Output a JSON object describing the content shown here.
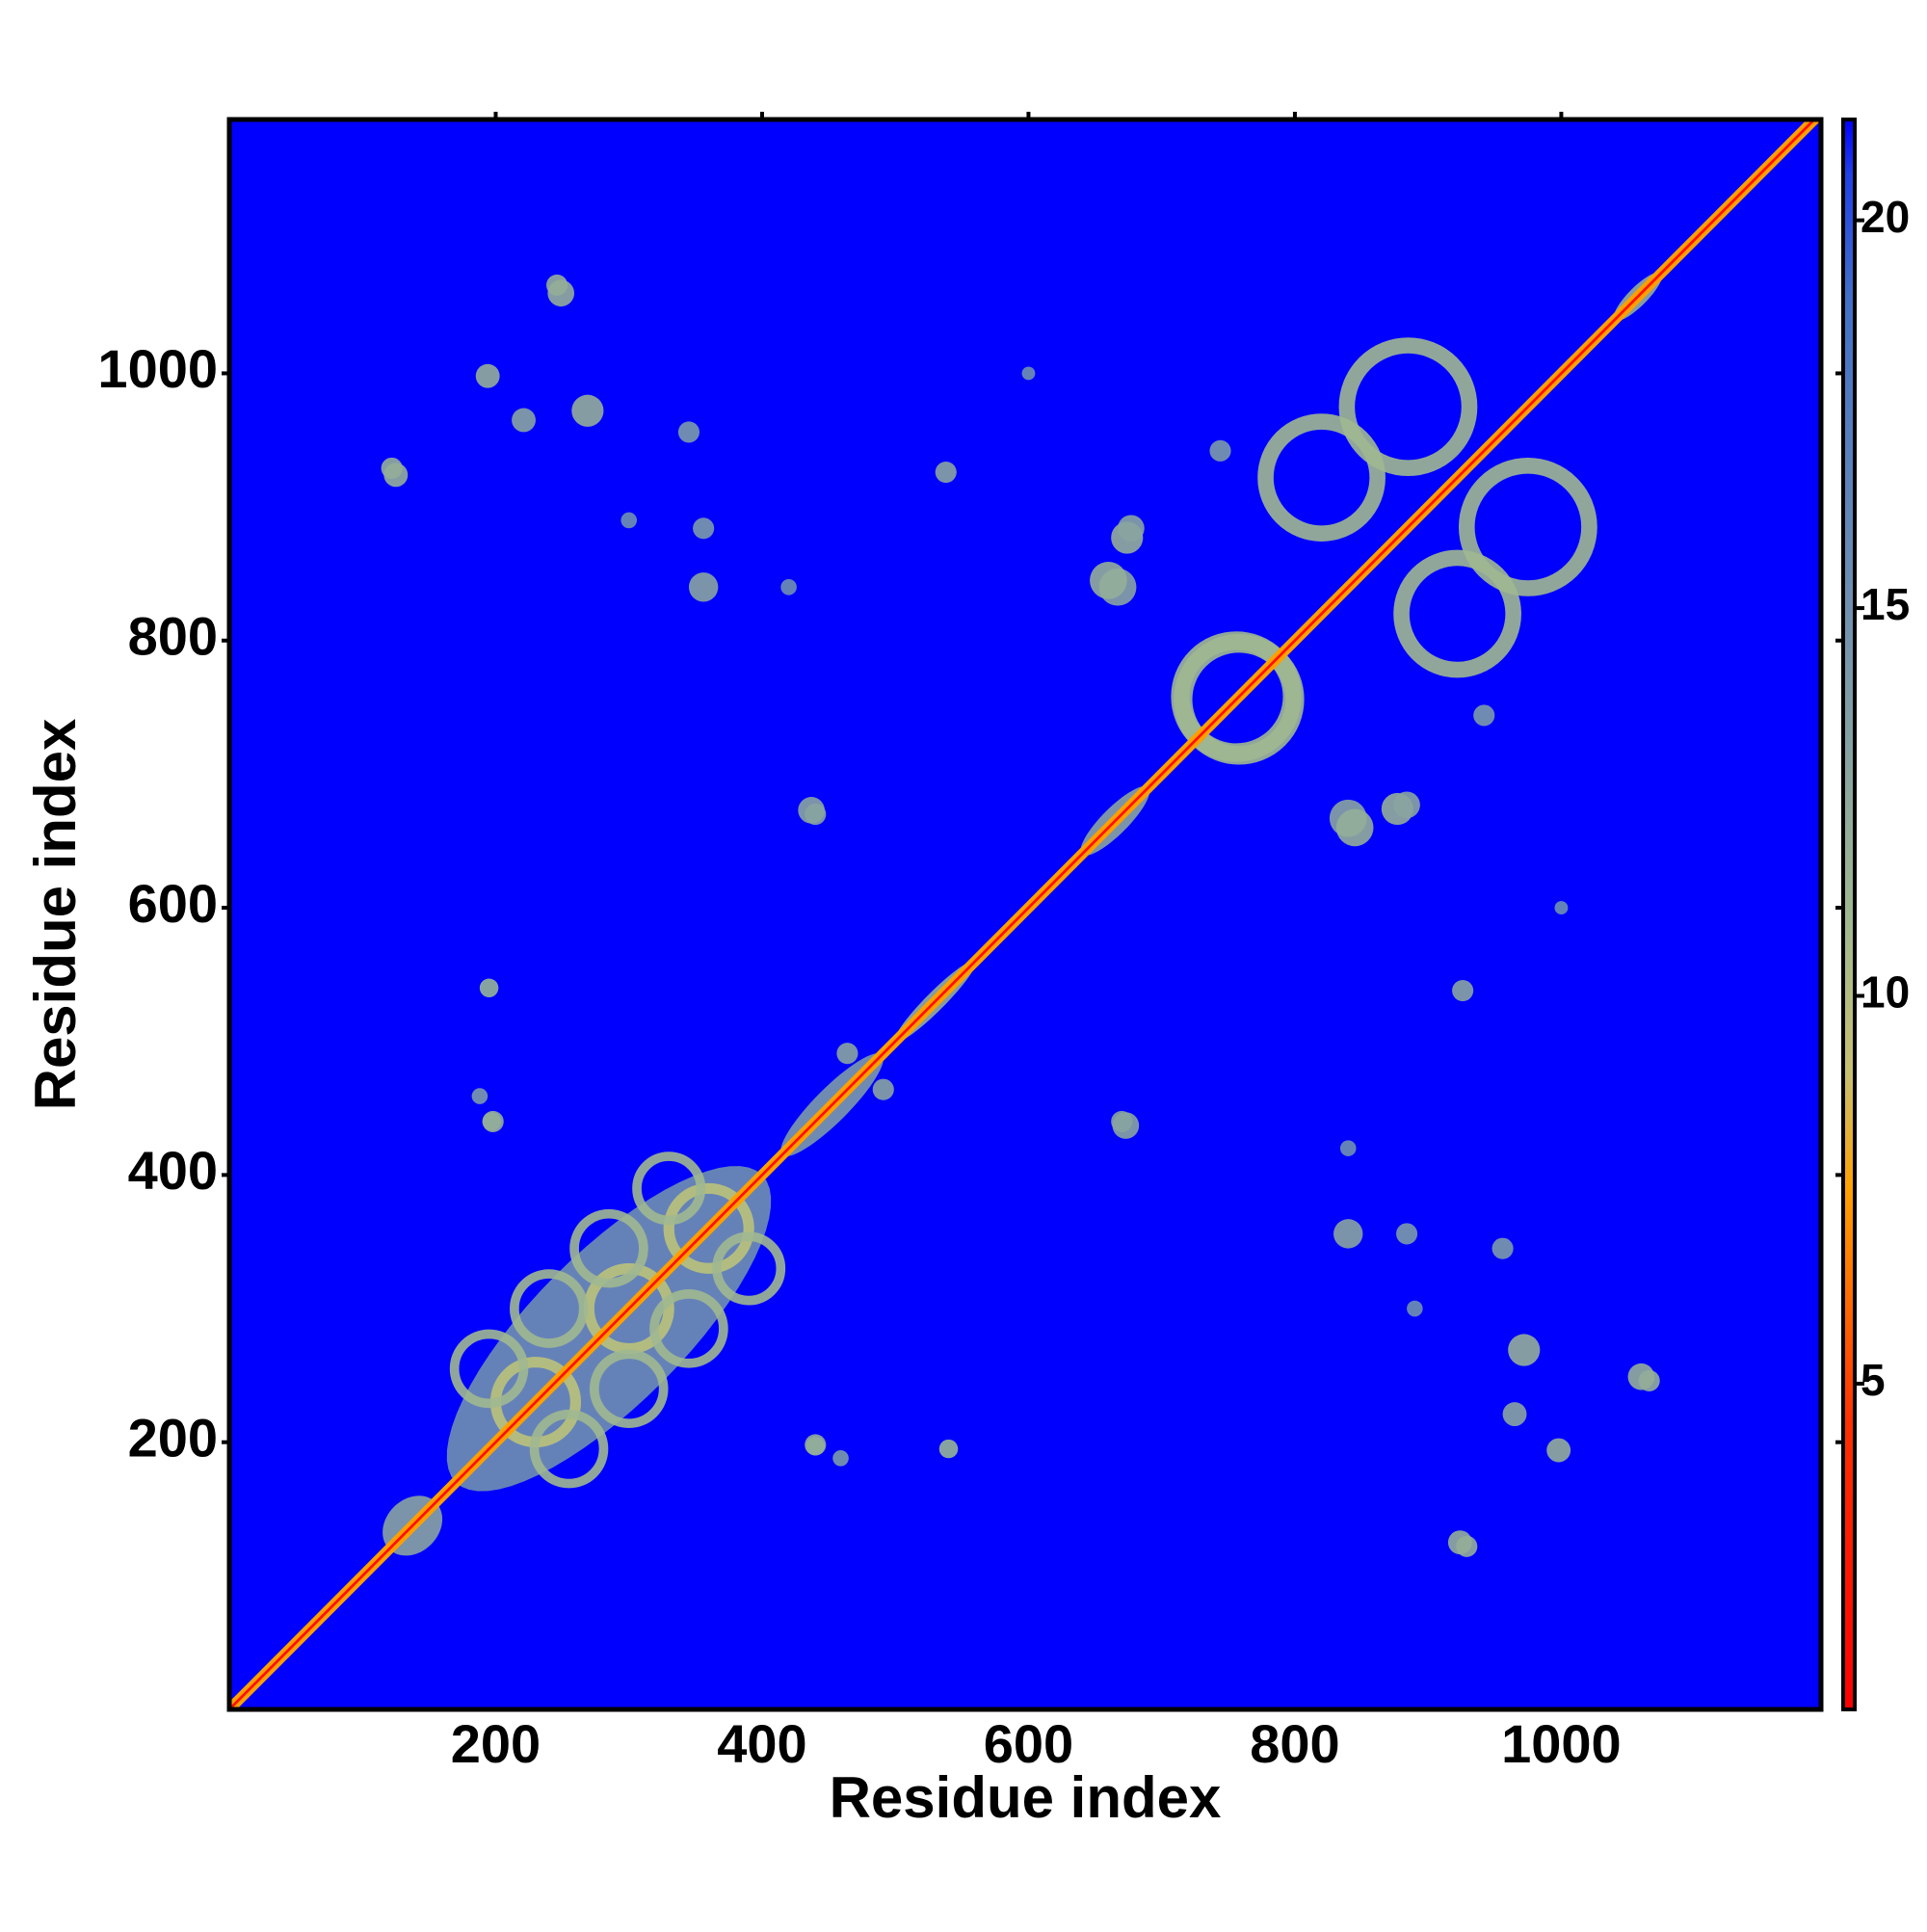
{
  "chart_data": {
    "type": "heatmap",
    "xlabel": "Residue index",
    "ylabel": "Residue index",
    "xlim": [
      0,
      1195
    ],
    "ylim": [
      0,
      1190
    ],
    "xticks": [
      200,
      400,
      600,
      800,
      1000
    ],
    "yticks": [
      200,
      400,
      600,
      800,
      1000
    ],
    "zlim": [
      0.8,
      21.3
    ],
    "zticks": [
      5,
      10,
      15,
      20
    ],
    "colorscale": [
      [
        0.8,
        "#ff0000"
      ],
      [
        4.5,
        "#ff3000"
      ],
      [
        7.5,
        "#ffa000"
      ],
      [
        9,
        "#c8c070"
      ],
      [
        11,
        "#a0b890"
      ],
      [
        15,
        "#7090b0"
      ],
      [
        19,
        "#4070c8"
      ],
      [
        20.6,
        "#2040e8"
      ],
      [
        21.3,
        "#0000ff"
      ]
    ],
    "background": 21.3,
    "diagonal": {
      "value": 2,
      "width": 4,
      "halo": 8,
      "halo_value": 7.5
    },
    "bands": [
      {
        "from": 170,
        "to": 400,
        "width": 80,
        "value": 15
      },
      {
        "from": 120,
        "to": 155,
        "width": 28,
        "value": 13
      },
      {
        "from": 415,
        "to": 490,
        "width": 18,
        "value": 14
      },
      {
        "from": 500,
        "to": 560,
        "width": 10,
        "value": 12
      },
      {
        "from": 640,
        "to": 690,
        "width": 14,
        "value": 13
      },
      {
        "from": 1040,
        "to": 1075,
        "width": 10,
        "value": 12
      }
    ],
    "rings": [
      {
        "x": 758,
        "y": 756,
        "r": 42,
        "width": 14,
        "value": 11
      },
      {
        "x": 885,
        "y": 975,
        "r": 46,
        "width": 12,
        "value": 11
      },
      {
        "x": 820,
        "y": 922,
        "r": 42,
        "width": 12,
        "value": 11
      },
      {
        "x": 230,
        "y": 230,
        "r": 30,
        "width": 8,
        "value": 10
      },
      {
        "x": 300,
        "y": 300,
        "r": 30,
        "width": 8,
        "value": 10
      },
      {
        "x": 360,
        "y": 360,
        "r": 30,
        "width": 8,
        "value": 10
      },
      {
        "x": 195,
        "y": 255,
        "r": 26,
        "width": 7,
        "value": 11
      },
      {
        "x": 240,
        "y": 300,
        "r": 26,
        "width": 7,
        "value": 11
      },
      {
        "x": 285,
        "y": 345,
        "r": 26,
        "width": 7,
        "value": 11
      },
      {
        "x": 330,
        "y": 390,
        "r": 24,
        "width": 7,
        "value": 11
      }
    ],
    "blobs": [
      {
        "x": 249,
        "y": 1060,
        "r": 10,
        "value": 12
      },
      {
        "x": 194,
        "y": 998,
        "r": 9,
        "value": 12
      },
      {
        "x": 221,
        "y": 965,
        "r": 9,
        "value": 13
      },
      {
        "x": 269,
        "y": 972,
        "r": 12,
        "value": 12
      },
      {
        "x": 125,
        "y": 924,
        "r": 9,
        "value": 12
      },
      {
        "x": 345,
        "y": 956,
        "r": 8,
        "value": 14
      },
      {
        "x": 356,
        "y": 840,
        "r": 11,
        "value": 13
      },
      {
        "x": 356,
        "y": 884,
        "r": 8,
        "value": 14
      },
      {
        "x": 538,
        "y": 926,
        "r": 8,
        "value": 13
      },
      {
        "x": 674,
        "y": 877,
        "r": 12,
        "value": 12
      },
      {
        "x": 667,
        "y": 840,
        "r": 14,
        "value": 13
      },
      {
        "x": 437,
        "y": 673,
        "r": 10,
        "value": 13
      },
      {
        "x": 744,
        "y": 942,
        "r": 8,
        "value": 14
      },
      {
        "x": 464,
        "y": 491,
        "r": 8,
        "value": 13
      },
      {
        "x": 197,
        "y": 440,
        "r": 7,
        "value": 13
      },
      {
        "x": 188,
        "y": 459,
        "r": 6,
        "value": 14
      },
      {
        "x": 195,
        "y": 540,
        "r": 7,
        "value": 13
      },
      {
        "x": 440,
        "y": 198,
        "r": 8,
        "value": 12
      },
      {
        "x": 540,
        "y": 195,
        "r": 7,
        "value": 13
      },
      {
        "x": 670,
        "y": 440,
        "r": 8,
        "value": 13
      },
      {
        "x": 845,
        "y": 660,
        "r": 14,
        "value": 12
      },
      {
        "x": 884,
        "y": 677,
        "r": 10,
        "value": 13
      },
      {
        "x": 1066,
        "y": 246,
        "r": 8,
        "value": 12
      },
      {
        "x": 929,
        "y": 122,
        "r": 8,
        "value": 12
      },
      {
        "x": 420,
        "y": 840,
        "r": 6,
        "value": 15
      },
      {
        "x": 300,
        "y": 890,
        "r": 6,
        "value": 15
      },
      {
        "x": 600,
        "y": 1000,
        "r": 5,
        "value": 15
      }
    ]
  }
}
